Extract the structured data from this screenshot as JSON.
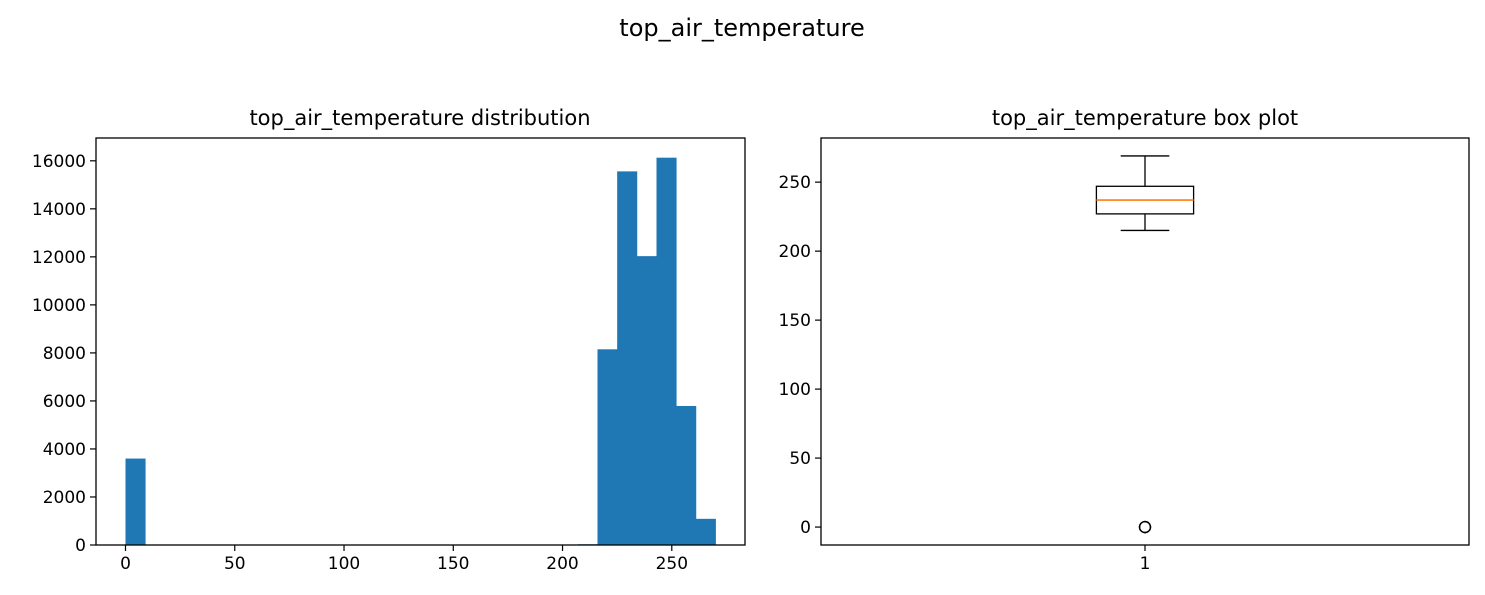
{
  "figure": {
    "suptitle": "top_air_temperature"
  },
  "chart_data": [
    {
      "type": "bar",
      "title": "top_air_temperature distribution",
      "xlabel": "",
      "ylabel": "",
      "xlim": [
        -13.5,
        283.5
      ],
      "ylim": [
        0,
        16950
      ],
      "xticks": [
        0,
        50,
        100,
        150,
        200,
        250
      ],
      "yticks": [
        0,
        2000,
        4000,
        6000,
        8000,
        10000,
        12000,
        14000,
        16000
      ],
      "bin_width": 9,
      "bins": [
        {
          "start": 0,
          "count": 3600
        },
        {
          "start": 9,
          "count": 0
        },
        {
          "start": 18,
          "count": 0
        },
        {
          "start": 27,
          "count": 0
        },
        {
          "start": 36,
          "count": 0
        },
        {
          "start": 45,
          "count": 0
        },
        {
          "start": 54,
          "count": 0
        },
        {
          "start": 63,
          "count": 0
        },
        {
          "start": 72,
          "count": 0
        },
        {
          "start": 81,
          "count": 0
        },
        {
          "start": 90,
          "count": 0
        },
        {
          "start": 99,
          "count": 0
        },
        {
          "start": 108,
          "count": 0
        },
        {
          "start": 117,
          "count": 0
        },
        {
          "start": 126,
          "count": 0
        },
        {
          "start": 135,
          "count": 0
        },
        {
          "start": 144,
          "count": 0
        },
        {
          "start": 153,
          "count": 0
        },
        {
          "start": 162,
          "count": 0
        },
        {
          "start": 171,
          "count": 0
        },
        {
          "start": 180,
          "count": 0
        },
        {
          "start": 189,
          "count": 0
        },
        {
          "start": 198,
          "count": 0
        },
        {
          "start": 207,
          "count": 30
        },
        {
          "start": 216,
          "count": 8150
        },
        {
          "start": 225,
          "count": 15560
        },
        {
          "start": 234,
          "count": 12030
        },
        {
          "start": 243,
          "count": 16130
        },
        {
          "start": 252,
          "count": 5790
        },
        {
          "start": 261,
          "count": 1090
        }
      ],
      "color": "#1f77b4",
      "grid": false
    },
    {
      "type": "box",
      "title": "top_air_temperature box plot",
      "xlabel": "",
      "ylabel": "",
      "ylim": [
        -13,
        282
      ],
      "yticks": [
        0,
        50,
        100,
        150,
        200,
        250
      ],
      "xtick_labels": [
        "1"
      ],
      "q1": 227,
      "median": 237,
      "q3": 247,
      "whisker_low": 215,
      "whisker_high": 269,
      "outliers": [
        0,
        0,
        0
      ],
      "median_color": "#ff7f0e",
      "grid": false
    }
  ]
}
